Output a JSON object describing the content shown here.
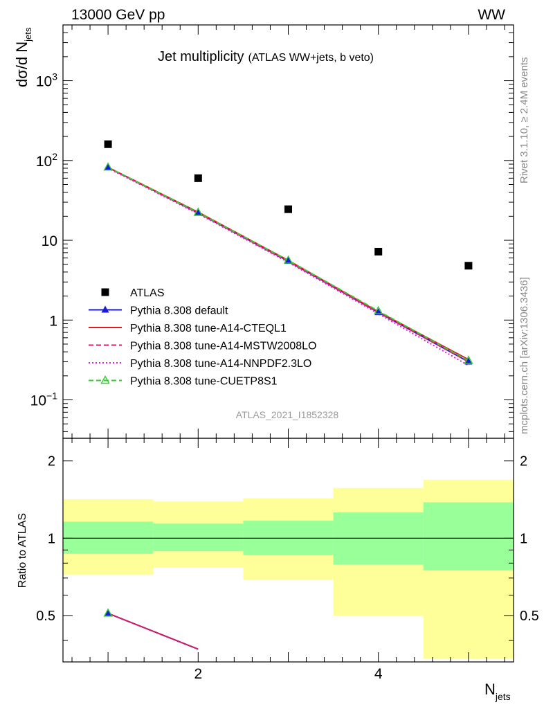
{
  "header": {
    "energy_label": "13000 GeV pp",
    "process_label": "WW"
  },
  "side_labels": {
    "rivet": "Rivet 3.1.10, ≥ 2.4M events",
    "mcplots": "mcplots.cern.ch [arXiv:1306.3436]"
  },
  "watermark": "ATLAS_2021_I1852328",
  "chart_data": [
    {
      "type": "scatter",
      "panel": "main",
      "title": "Jet multiplicity",
      "subtitle": "(ATLAS WW+jets, b veto)",
      "ylabel_main": "dσ/d N",
      "ylabel_sub": "jets",
      "xlabel_main": "N",
      "xlabel_sub": "jets",
      "yscale": "log",
      "xlim": [
        0.5,
        5.5
      ],
      "ylim": [
        0.033,
        5000
      ],
      "ytick_labels": [
        {
          "value": 0.1,
          "base": "10",
          "exp": "−1"
        },
        {
          "value": 1,
          "base": "1",
          "exp": ""
        },
        {
          "value": 10,
          "base": "10",
          "exp": ""
        },
        {
          "value": 100,
          "base": "10",
          "exp": "2"
        },
        {
          "value": 1000,
          "base": "10",
          "exp": "3"
        }
      ],
      "legend_position": "lower-left",
      "x": [
        1,
        2,
        3,
        4,
        5
      ],
      "series": [
        {
          "name": "ATLAS",
          "values": [
            160,
            60,
            24.5,
            7.2,
            4.8
          ],
          "color": "#000000",
          "marker": "square",
          "line": "none"
        },
        {
          "name": "Pythia 8.308 default",
          "values": [
            82,
            22,
            5.5,
            1.25,
            0.3
          ],
          "color": "#1a1adb",
          "marker": "triangle",
          "line": "solid"
        },
        {
          "name": "Pythia 8.308 tune-A14-CTEQL1",
          "values": [
            82,
            22.5,
            5.6,
            1.27,
            0.32
          ],
          "color": "#e51919",
          "marker": "none",
          "line": "solid"
        },
        {
          "name": "Pythia 8.308 tune-A14-MSTW2008LO",
          "values": [
            81,
            22,
            5.4,
            1.24,
            0.3
          ],
          "color": "#e51970",
          "marker": "none",
          "line": "dashed"
        },
        {
          "name": "Pythia 8.308 tune-A14-NNPDF2.3LO",
          "values": [
            80,
            21.5,
            5.3,
            1.2,
            0.27
          ],
          "color": "#e019e0",
          "marker": "none",
          "line": "dotted"
        },
        {
          "name": "Pythia 8.308 tune-CUETP8S1",
          "values": [
            82,
            22.3,
            5.6,
            1.3,
            0.31
          ],
          "color": "#33cc33",
          "marker": "open-triangle",
          "line": "dashed"
        }
      ]
    },
    {
      "type": "line",
      "panel": "ratio",
      "ylabel": "Ratio to ATLAS",
      "yscale": "log",
      "xlim": [
        0.5,
        5.5
      ],
      "ylim": [
        0.33,
        2.45
      ],
      "ytick_labels": [
        {
          "value": 0.5,
          "label": "0.5"
        },
        {
          "value": 1,
          "label": "1"
        },
        {
          "value": 2,
          "label": "2"
        }
      ],
      "xtick_labels": [
        {
          "value": 2,
          "label": "2"
        },
        {
          "value": 4,
          "label": "4"
        }
      ],
      "bands": [
        {
          "x": [
            0.5,
            1.5
          ],
          "inner": [
            0.87,
            1.16
          ],
          "outer": [
            0.72,
            1.42
          ],
          "color_inner": "#99ff99",
          "color_outer": "#ffff99"
        },
        {
          "x": [
            1.5,
            2.5
          ],
          "inner": [
            0.89,
            1.14
          ],
          "outer": [
            0.77,
            1.39
          ],
          "color_inner": "#99ff99",
          "color_outer": "#ffff99"
        },
        {
          "x": [
            2.5,
            3.5
          ],
          "inner": [
            0.86,
            1.17
          ],
          "outer": [
            0.69,
            1.43
          ],
          "color_inner": "#99ff99",
          "color_outer": "#ffff99"
        },
        {
          "x": [
            3.5,
            4.5
          ],
          "inner": [
            0.79,
            1.26
          ],
          "outer": [
            0.5,
            1.57
          ],
          "color_inner": "#99ff99",
          "color_outer": "#ffff99"
        },
        {
          "x": [
            4.5,
            5.5
          ],
          "inner": [
            0.75,
            1.38
          ],
          "outer": [
            0.34,
            1.69
          ],
          "color_inner": "#99ff99",
          "color_outer": "#ffff99"
        }
      ],
      "reference_line": 1,
      "ratio_series": {
        "name": "Pythia 8.308 default",
        "x": [
          1,
          2
        ],
        "values": [
          0.51,
          0.37
        ]
      }
    }
  ]
}
